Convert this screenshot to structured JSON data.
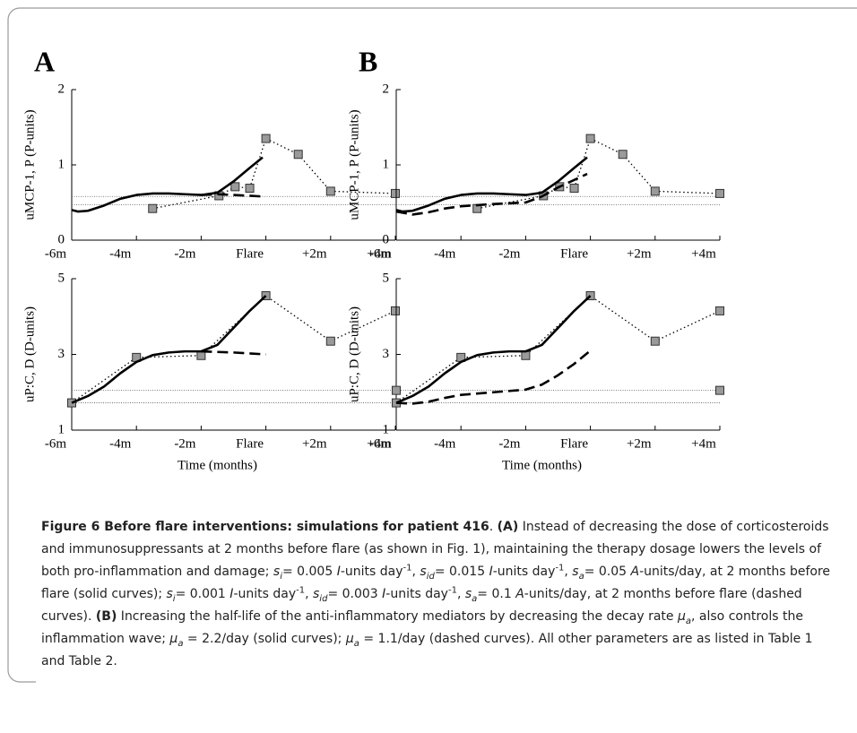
{
  "chart_data": [
    {
      "type": "line",
      "title": "A",
      "ylabel": "uMCP-1, P (P-units)",
      "xlim": [
        -6,
        4
      ],
      "xticks": [
        {
          "value": -6,
          "label": "-6m"
        },
        {
          "value": -4,
          "label": "-4m"
        },
        {
          "value": -2,
          "label": "-2m"
        },
        {
          "value": 0,
          "label": "Flare"
        },
        {
          "value": 2,
          "label": "+2m"
        },
        {
          "value": 4,
          "label": "+4m"
        }
      ],
      "ylim": [
        0,
        2
      ],
      "yticks": [
        0,
        1,
        2
      ],
      "series": [
        {
          "style": "ref",
          "x": [
            -6,
            4
          ],
          "values": [
            0.58,
            0.58
          ]
        },
        {
          "style": "ref",
          "x": [
            -6,
            4
          ],
          "values": [
            0.47,
            0.47
          ]
        },
        {
          "style": "dotted",
          "marker": "square",
          "x": [
            -3.5,
            -1.45,
            -0.95,
            -0.5,
            0,
            1,
            2,
            4
          ],
          "values": [
            0.42,
            0.59,
            0.71,
            0.69,
            1.35,
            1.14,
            0.65,
            0.62
          ]
        },
        {
          "style": "solid",
          "x": [
            -6,
            -5.8,
            -5.5,
            -5,
            -4.5,
            -4,
            -3.5,
            -3,
            -2.5,
            -2,
            -1.5,
            -1,
            -0.5,
            -0.1
          ],
          "values": [
            0.4,
            0.38,
            0.39,
            0.46,
            0.55,
            0.6,
            0.62,
            0.62,
            0.61,
            0.6,
            0.63,
            0.78,
            0.96,
            1.1
          ]
        },
        {
          "style": "dashed",
          "x": [
            -2,
            -1.5,
            -1,
            -0.5,
            -0.1
          ],
          "values": [
            0.6,
            0.61,
            0.6,
            0.59,
            0.58
          ]
        }
      ]
    },
    {
      "type": "line",
      "title": "B",
      "ylabel": "uMCP-1, P (P-units)",
      "xlim": [
        -6,
        4
      ],
      "xticks": [
        {
          "value": -6,
          "label": "-6m"
        },
        {
          "value": -4,
          "label": "-4m"
        },
        {
          "value": -2,
          "label": "-2m"
        },
        {
          "value": 0,
          "label": "Flare"
        },
        {
          "value": 2,
          "label": "+2m"
        },
        {
          "value": 4,
          "label": "+4m"
        }
      ],
      "ylim": [
        0,
        2
      ],
      "yticks": [
        0,
        1,
        2
      ],
      "series": [
        {
          "style": "ref",
          "x": [
            -6,
            4
          ],
          "values": [
            0.58,
            0.58
          ]
        },
        {
          "style": "ref",
          "x": [
            -6,
            4
          ],
          "values": [
            0.47,
            0.47
          ]
        },
        {
          "style": "dotted",
          "marker": "square",
          "x": [
            -3.5,
            -1.45,
            -0.95,
            -0.5,
            0,
            1,
            2,
            4
          ],
          "values": [
            0.42,
            0.59,
            0.71,
            0.69,
            1.35,
            1.14,
            0.65,
            0.62
          ]
        },
        {
          "style": "solid",
          "x": [
            -6,
            -5.8,
            -5.5,
            -5,
            -4.5,
            -4,
            -3.5,
            -3,
            -2.5,
            -2,
            -1.5,
            -1,
            -0.5,
            -0.1
          ],
          "values": [
            0.4,
            0.38,
            0.39,
            0.46,
            0.55,
            0.6,
            0.62,
            0.62,
            0.61,
            0.6,
            0.63,
            0.78,
            0.96,
            1.1
          ]
        },
        {
          "style": "dashed",
          "x": [
            -6,
            -5.5,
            -5,
            -4.5,
            -4,
            -3,
            -2,
            -1.5,
            -1,
            -0.5,
            -0.1
          ],
          "values": [
            0.38,
            0.34,
            0.37,
            0.42,
            0.45,
            0.48,
            0.5,
            0.58,
            0.7,
            0.8,
            0.88
          ]
        }
      ]
    },
    {
      "type": "line",
      "ylabel": "uP:C, D (D-units)",
      "xlabel": "Time (months)",
      "xlim": [
        -6,
        4
      ],
      "xticks": [
        {
          "value": -6,
          "label": "-6m"
        },
        {
          "value": -4,
          "label": "-4m"
        },
        {
          "value": -2,
          "label": "-2m"
        },
        {
          "value": 0,
          "label": "Flare"
        },
        {
          "value": 2,
          "label": "+2m"
        },
        {
          "value": 4,
          "label": "+4m"
        }
      ],
      "ylim": [
        1,
        5
      ],
      "yticks": [
        1,
        3,
        5
      ],
      "series": [
        {
          "style": "ref",
          "x": [
            -6,
            4
          ],
          "values": [
            2.05,
            2.05
          ]
        },
        {
          "style": "ref",
          "x": [
            -6,
            4
          ],
          "values": [
            1.72,
            1.72
          ]
        },
        {
          "style": "dotted",
          "marker": "square",
          "x": [
            -6,
            -4,
            -2,
            0,
            2,
            4
          ],
          "values": [
            1.72,
            2.92,
            2.97,
            4.55,
            3.35,
            4.15
          ]
        },
        {
          "style": "solid",
          "x": [
            -6,
            -5.5,
            -5,
            -4.5,
            -4,
            -3.5,
            -3,
            -2.5,
            -2,
            -1.5,
            -1,
            -0.5,
            0
          ],
          "values": [
            1.72,
            1.9,
            2.15,
            2.5,
            2.8,
            2.98,
            3.05,
            3.08,
            3.08,
            3.25,
            3.7,
            4.15,
            4.55
          ]
        },
        {
          "style": "dashed",
          "x": [
            -2,
            -1,
            0
          ],
          "values": [
            3.08,
            3.05,
            3.0
          ]
        }
      ]
    },
    {
      "type": "line",
      "ylabel": "uP:C, D (D-units)",
      "xlabel": "Time (months)",
      "xlim": [
        -6,
        4
      ],
      "xticks": [
        {
          "value": -6,
          "label": "-6m"
        },
        {
          "value": -4,
          "label": "-4m"
        },
        {
          "value": -2,
          "label": "-2m"
        },
        {
          "value": 0,
          "label": "Flare"
        },
        {
          "value": 2,
          "label": "+2m"
        },
        {
          "value": 4,
          "label": "+4m"
        }
      ],
      "ylim": [
        1,
        5
      ],
      "yticks": [
        1,
        3,
        5
      ],
      "series": [
        {
          "style": "ref",
          "x": [
            -6,
            4
          ],
          "values": [
            2.05,
            2.05
          ]
        },
        {
          "style": "ref",
          "x": [
            -6,
            4
          ],
          "values": [
            1.72,
            1.72
          ]
        },
        {
          "style": "dotted",
          "marker": "square",
          "x": [
            -6,
            -4,
            -2,
            0,
            2,
            4
          ],
          "values": [
            1.72,
            2.92,
            2.97,
            4.55,
            3.35,
            4.15
          ]
        },
        {
          "style": "none",
          "marker": "square",
          "x": [
            -6,
            4
          ],
          "values": [
            2.05,
            2.05
          ]
        },
        {
          "style": "solid",
          "x": [
            -6,
            -5.5,
            -5,
            -4.5,
            -4,
            -3.5,
            -3,
            -2.5,
            -2,
            -1.5,
            -1,
            -0.5,
            0
          ],
          "values": [
            1.72,
            1.9,
            2.15,
            2.5,
            2.8,
            2.98,
            3.05,
            3.08,
            3.08,
            3.25,
            3.7,
            4.15,
            4.55
          ]
        },
        {
          "style": "dashed",
          "x": [
            -6,
            -5.5,
            -5,
            -4.5,
            -4,
            -3,
            -2,
            -1.5,
            -1,
            -0.5,
            0
          ],
          "values": [
            1.72,
            1.7,
            1.75,
            1.85,
            1.93,
            2.0,
            2.07,
            2.2,
            2.45,
            2.75,
            3.1
          ]
        }
      ]
    }
  ],
  "figure": {
    "caption": [
      {
        "f": "b",
        "t": "Figure 6 Before flare interventions: simulations for patient 416"
      },
      {
        "t": ". "
      },
      {
        "f": "b",
        "t": "(A)"
      },
      {
        "t": " Instead of decreasing the dose of corticosteroids and immunosuppressants at 2 months before flare (as shown in Fig. 1), maintaining the therapy dosage lowers the levels of both pro-inflammation and damage; "
      },
      {
        "f": "i",
        "t": "s"
      },
      {
        "f": "isub",
        "t": "i"
      },
      {
        "t": "= 0.005 "
      },
      {
        "f": "i",
        "t": "I"
      },
      {
        "t": "-units day"
      },
      {
        "f": "sup",
        "t": "-1"
      },
      {
        "t": ", "
      },
      {
        "f": "i",
        "t": "s"
      },
      {
        "f": "isub",
        "t": "id"
      },
      {
        "t": "= 0.015 "
      },
      {
        "f": "i",
        "t": "I"
      },
      {
        "t": "-units day"
      },
      {
        "f": "sup",
        "t": "-1"
      },
      {
        "t": ", "
      },
      {
        "f": "i",
        "t": "s"
      },
      {
        "f": "isub",
        "t": "a"
      },
      {
        "t": "= 0.05 "
      },
      {
        "f": "i",
        "t": "A"
      },
      {
        "t": "-units/day, at 2 months before flare (solid curves); "
      },
      {
        "f": "i",
        "t": "s"
      },
      {
        "f": "isub",
        "t": "i"
      },
      {
        "t": "= 0.001 "
      },
      {
        "f": "i",
        "t": "I"
      },
      {
        "t": "-units day"
      },
      {
        "f": "sup",
        "t": "-1"
      },
      {
        "t": ", "
      },
      {
        "f": "i",
        "t": "s"
      },
      {
        "f": "isub",
        "t": "id"
      },
      {
        "t": "= 0.003 "
      },
      {
        "f": "i",
        "t": "I"
      },
      {
        "t": "-units day"
      },
      {
        "f": "sup",
        "t": "-1"
      },
      {
        "t": ", "
      },
      {
        "f": "i",
        "t": "s"
      },
      {
        "f": "isub",
        "t": "a"
      },
      {
        "t": "= 0.1 "
      },
      {
        "f": "i",
        "t": "A"
      },
      {
        "t": "-units/day, at 2 months before flare (dashed curves). "
      },
      {
        "f": "b",
        "t": "(B)"
      },
      {
        "t": " Increasing the half-life of the anti-inflammatory mediators by decreasing the decay rate "
      },
      {
        "f": "i",
        "t": "μ"
      },
      {
        "f": "isub",
        "t": "a"
      },
      {
        "t": ", also controls the inflammation wave; "
      },
      {
        "f": "i",
        "t": "μ"
      },
      {
        "f": "isub",
        "t": "a"
      },
      {
        "t": " = 2.2/day (solid curves); "
      },
      {
        "f": "i",
        "t": "μ"
      },
      {
        "f": "isub",
        "t": "a"
      },
      {
        "t": " = 1.1/day (dashed curves). All other parameters are as listed in Table 1 and Table 2."
      }
    ]
  }
}
